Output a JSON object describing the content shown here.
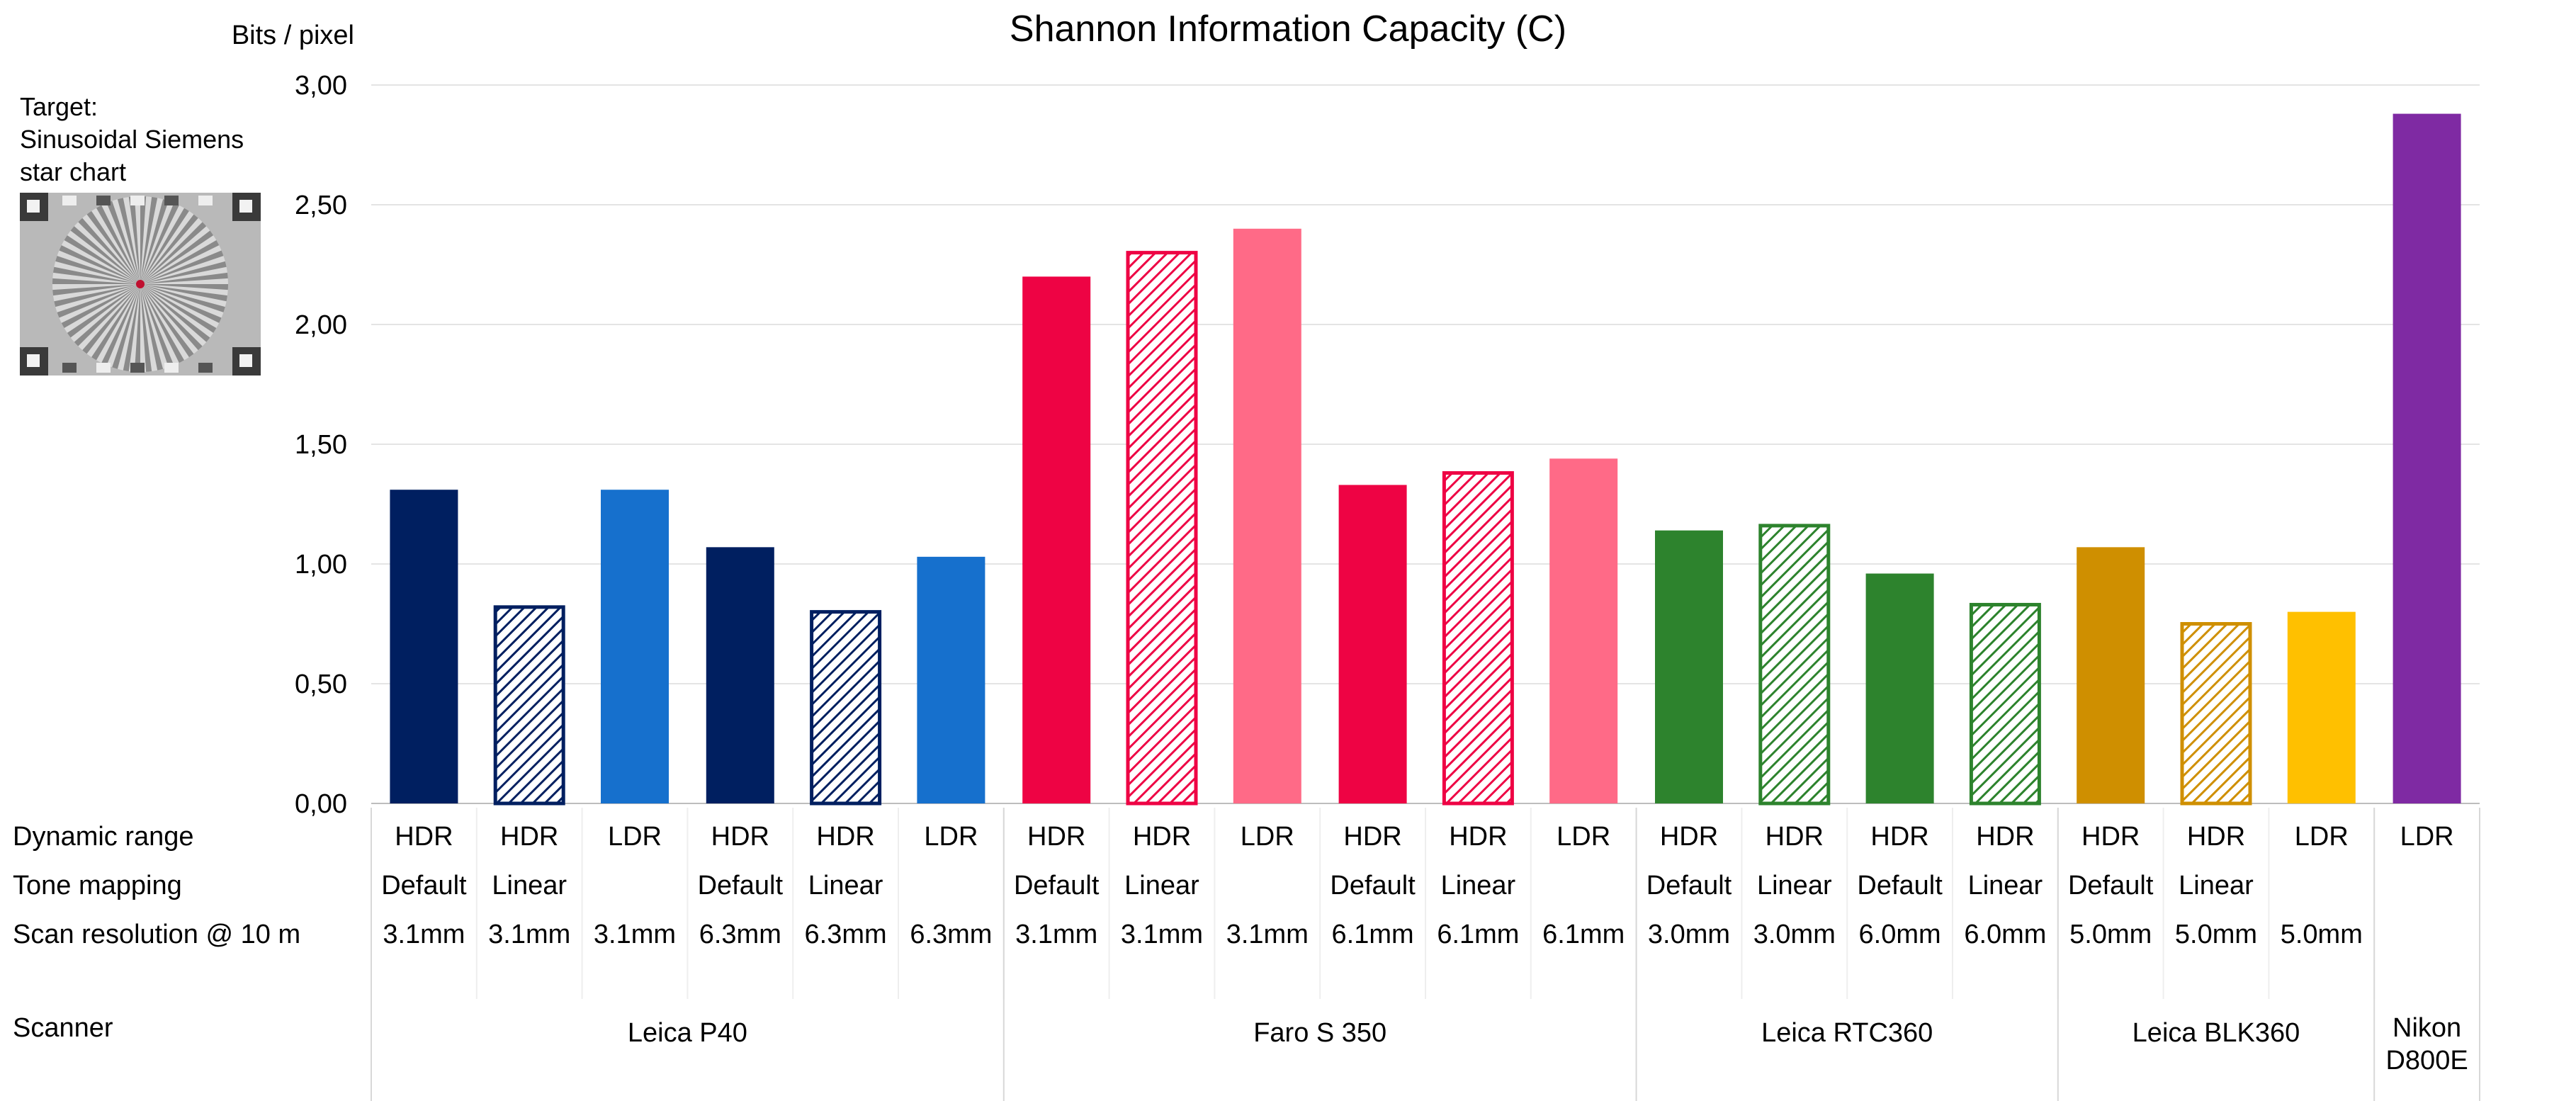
{
  "chart_data": {
    "type": "bar",
    "title": "Shannon Information Capacity (C)",
    "ylabel": "Bits / pixel",
    "ylim": [
      0,
      3
    ],
    "yticks": [
      "0,00",
      "0,50",
      "1,00",
      "1,50",
      "2,00",
      "2,50",
      "3,00"
    ],
    "grid": true,
    "row_labels": {
      "dynamic_range": "Dynamic range",
      "tone_mapping": "Tone mapping",
      "scan_resolution": "Scan resolution @ 10 m",
      "scanner": "Scanner"
    },
    "target_note": [
      "Target:",
      "Sinusoidal Siemens",
      "star chart"
    ],
    "colors": {
      "leica_p40_dark": "#001f60",
      "leica_p40_light": "#1670cd",
      "faro_dark": "#ee0344",
      "faro_light": "#ff6a87",
      "rtc360": "#2d832d",
      "blk360_dark": "#cf8f00",
      "blk360_light": "#ffc000",
      "nikon": "#7f2aa3"
    },
    "series": [
      {
        "name": "Shannon capacity",
        "values": [
          1.31,
          0.82,
          1.31,
          1.07,
          0.8,
          1.03,
          2.2,
          2.3,
          2.4,
          1.33,
          1.38,
          1.44,
          1.14,
          1.16,
          0.96,
          0.83,
          1.07,
          0.75,
          0.8,
          2.88
        ]
      }
    ],
    "bars": [
      {
        "dynamic_range": "HDR",
        "tone_mapping": "Default",
        "resolution": "3.1mm",
        "value": 1.31,
        "color": "#001f60",
        "hatched": false
      },
      {
        "dynamic_range": "HDR",
        "tone_mapping": "Linear",
        "resolution": "3.1mm",
        "value": 0.82,
        "color": "#001f60",
        "hatched": true
      },
      {
        "dynamic_range": "LDR",
        "tone_mapping": "",
        "resolution": "3.1mm",
        "value": 1.31,
        "color": "#1670cd",
        "hatched": false
      },
      {
        "dynamic_range": "HDR",
        "tone_mapping": "Default",
        "resolution": "6.3mm",
        "value": 1.07,
        "color": "#001f60",
        "hatched": false
      },
      {
        "dynamic_range": "HDR",
        "tone_mapping": "Linear",
        "resolution": "6.3mm",
        "value": 0.8,
        "color": "#001f60",
        "hatched": true
      },
      {
        "dynamic_range": "LDR",
        "tone_mapping": "",
        "resolution": "6.3mm",
        "value": 1.03,
        "color": "#1670cd",
        "hatched": false
      },
      {
        "dynamic_range": "HDR",
        "tone_mapping": "Default",
        "resolution": "3.1mm",
        "value": 2.2,
        "color": "#ee0344",
        "hatched": false
      },
      {
        "dynamic_range": "HDR",
        "tone_mapping": "Linear",
        "resolution": "3.1mm",
        "value": 2.3,
        "color": "#ee0344",
        "hatched": true
      },
      {
        "dynamic_range": "LDR",
        "tone_mapping": "",
        "resolution": "3.1mm",
        "value": 2.4,
        "color": "#ff6a87",
        "hatched": false
      },
      {
        "dynamic_range": "HDR",
        "tone_mapping": "Default",
        "resolution": "6.1mm",
        "value": 1.33,
        "color": "#ee0344",
        "hatched": false
      },
      {
        "dynamic_range": "HDR",
        "tone_mapping": "Linear",
        "resolution": "6.1mm",
        "value": 1.38,
        "color": "#ee0344",
        "hatched": true
      },
      {
        "dynamic_range": "LDR",
        "tone_mapping": "",
        "resolution": "6.1mm",
        "value": 1.44,
        "color": "#ff6a87",
        "hatched": false
      },
      {
        "dynamic_range": "HDR",
        "tone_mapping": "Default",
        "resolution": "3.0mm",
        "value": 1.14,
        "color": "#2d832d",
        "hatched": false
      },
      {
        "dynamic_range": "HDR",
        "tone_mapping": "Linear",
        "resolution": "3.0mm",
        "value": 1.16,
        "color": "#2d832d",
        "hatched": true
      },
      {
        "dynamic_range": "HDR",
        "tone_mapping": "Default",
        "resolution": "6.0mm",
        "value": 0.96,
        "color": "#2d832d",
        "hatched": false
      },
      {
        "dynamic_range": "HDR",
        "tone_mapping": "Linear",
        "resolution": "6.0mm",
        "value": 0.83,
        "color": "#2d832d",
        "hatched": true
      },
      {
        "dynamic_range": "HDR",
        "tone_mapping": "Default",
        "resolution": "5.0mm",
        "value": 1.07,
        "color": "#cf8f00",
        "hatched": false
      },
      {
        "dynamic_range": "HDR",
        "tone_mapping": "Linear",
        "resolution": "5.0mm",
        "value": 0.75,
        "color": "#cf8f00",
        "hatched": true
      },
      {
        "dynamic_range": "LDR",
        "tone_mapping": "",
        "resolution": "5.0mm",
        "value": 0.8,
        "color": "#ffc000",
        "hatched": false
      },
      {
        "dynamic_range": "LDR",
        "tone_mapping": "",
        "resolution": "",
        "value": 2.88,
        "color": "#7f2aa3",
        "hatched": false
      }
    ],
    "scanners": [
      {
        "name": "Leica P40",
        "count": 6
      },
      {
        "name": "Faro S 350",
        "count": 6
      },
      {
        "name": "Leica RTC360",
        "count": 4
      },
      {
        "name": "Leica BLK360",
        "count": 3
      },
      {
        "name": "Nikon D800E",
        "count": 1,
        "lines": [
          "Nikon",
          "D800E"
        ]
      }
    ]
  }
}
